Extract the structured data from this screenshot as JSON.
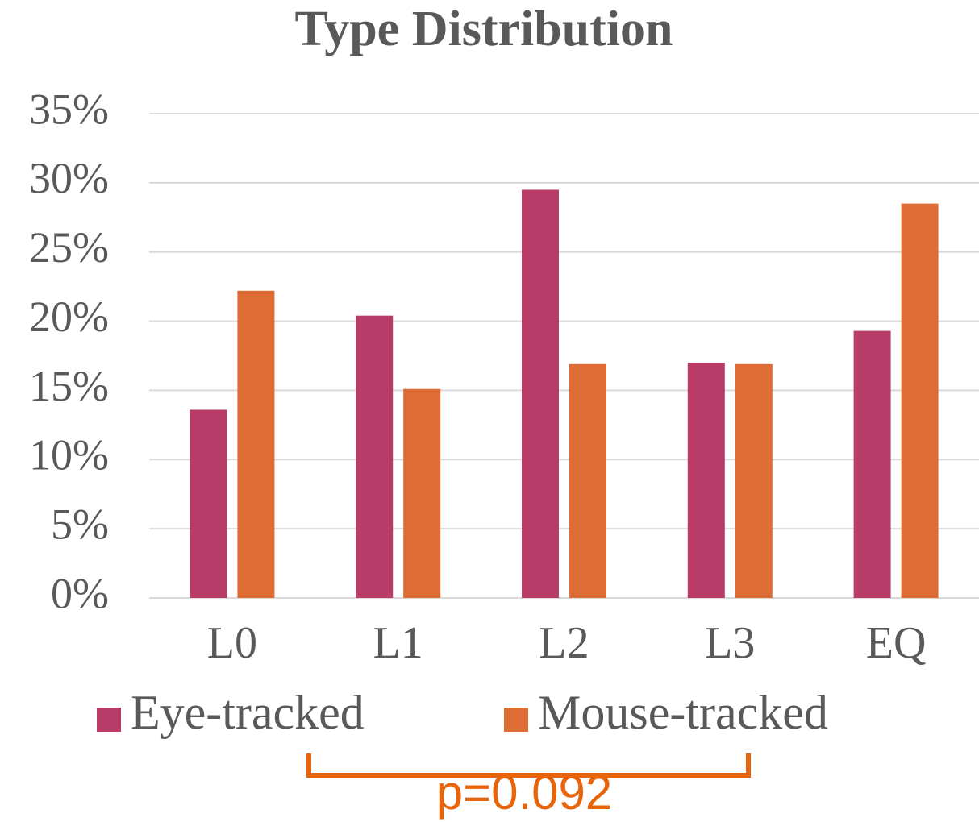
{
  "chart_data": {
    "type": "bar",
    "title": "Type Distribution",
    "categories": [
      "L0",
      "L1",
      "L2",
      "L3",
      "EQ"
    ],
    "series": [
      {
        "name": "Eye-tracked",
        "color": "#b83b68",
        "values": [
          13.6,
          20.4,
          29.5,
          17.0,
          19.3
        ]
      },
      {
        "name": "Mouse-tracked",
        "color": "#de6c35",
        "values": [
          22.2,
          15.1,
          16.9,
          16.9,
          28.5
        ]
      }
    ],
    "ylim": [
      0,
      35
    ],
    "yticks": [
      {
        "value": 0,
        "label": "0%"
      },
      {
        "value": 5,
        "label": "5%"
      },
      {
        "value": 10,
        "label": "10%"
      },
      {
        "value": 15,
        "label": "15%"
      },
      {
        "value": 20,
        "label": "20%"
      },
      {
        "value": 25,
        "label": "25%"
      },
      {
        "value": 30,
        "label": "30%"
      },
      {
        "value": 35,
        "label": "35%"
      }
    ],
    "grid": true,
    "legend": "bottom",
    "annotation": "p=0.092"
  }
}
